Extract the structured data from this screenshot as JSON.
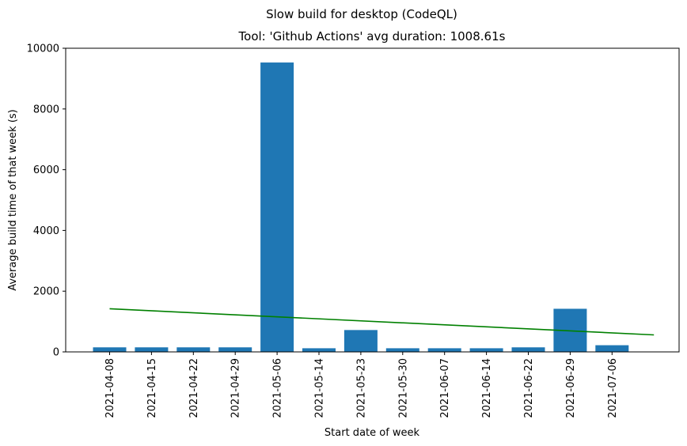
{
  "chart_data": {
    "type": "bar",
    "suptitle": "Slow build for desktop (CodeQL)",
    "title": "Tool: 'Github Actions' avg duration: 1008.61s",
    "xlabel": "Start date of week",
    "ylabel": "Average build time of that week (s)",
    "ylim": [
      0,
      10000
    ],
    "yticks": [
      0,
      2000,
      4000,
      6000,
      8000,
      10000
    ],
    "grid": false,
    "bar_color": "#1f77b4",
    "trend_color": "#008000",
    "categories": [
      "2021-04-08",
      "2021-04-15",
      "2021-04-22",
      "2021-04-29",
      "2021-05-06",
      "2021-05-14",
      "2021-05-23",
      "2021-05-30",
      "2021-06-07",
      "2021-06-14",
      "2021-06-22",
      "2021-06-29",
      "2021-07-06"
    ],
    "values": [
      150,
      150,
      150,
      150,
      9530,
      120,
      720,
      120,
      120,
      120,
      150,
      1420,
      220
    ],
    "trend": {
      "type": "line",
      "x_index": [
        0,
        13
      ],
      "values": [
        1420,
        560
      ]
    }
  }
}
